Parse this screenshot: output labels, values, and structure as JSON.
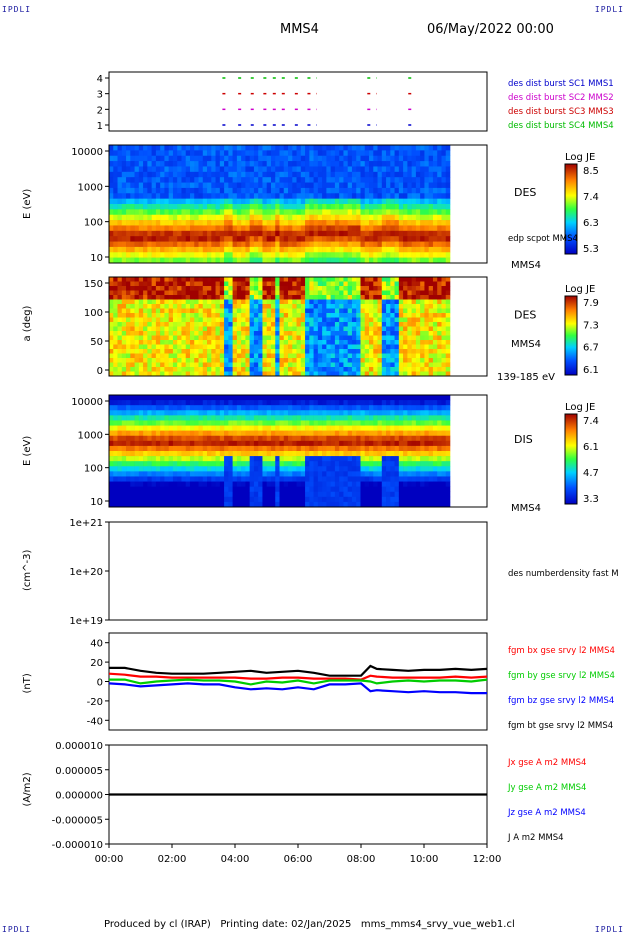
{
  "corners": {
    "tl": "IPDLI",
    "tr": "IPDLI",
    "bl": "IPDLI",
    "br": "IPDLI"
  },
  "header": {
    "spacecraft": "MMS4",
    "datetime": "06/May/2022 00:00"
  },
  "footer": {
    "text": "Produced by cl (IRAP)   Printing date: 02/Jan/2025   mms_mms4_srvy_vue_web1.cl"
  },
  "colors": {
    "ex": "#ff0000",
    "ey": "#00cc00",
    "ez": "#0000ff",
    "et": "#000000",
    "burst1": "#0000cc",
    "burst2": "#cc00cc",
    "burst3": "#cc0000",
    "burst4": "#00bb00"
  },
  "chart_data": [
    {
      "type": "scatter",
      "panel": "burst",
      "yticks": [
        "4",
        "3",
        "2",
        "1"
      ],
      "legend": [
        {
          "label": "des dist burst SC1 MMS1",
          "color": "#0000cc"
        },
        {
          "label": "des dist burst SC2 MMS2",
          "color": "#cc00cc"
        },
        {
          "label": "des dist burst SC3 MMS3",
          "color": "#cc0000"
        },
        {
          "label": "des dist burst SC4 MMS4",
          "color": "#00bb00"
        }
      ],
      "segments_hours": [
        [
          3.6,
          3.7
        ],
        [
          4.1,
          4.2
        ],
        [
          4.5,
          4.6
        ],
        [
          4.9,
          5.0
        ],
        [
          5.2,
          5.7
        ],
        [
          5.9,
          6.0
        ],
        [
          6.3,
          6.6
        ],
        [
          8.2,
          8.5
        ],
        [
          9.5,
          9.6
        ]
      ]
    },
    {
      "type": "heatmap",
      "panel": "des-energy",
      "ylabel": "E (eV)",
      "yticks": [
        "10000",
        "1000",
        "100",
        "10"
      ],
      "label": "DES",
      "overlay_label": "edp scpot MMS4",
      "spacecraft": "MMS4",
      "colorbar": {
        "title": "Log JE",
        "ticks": [
          "8.5",
          "7.4",
          "6.3",
          "5.3"
        ]
      }
    },
    {
      "type": "heatmap",
      "panel": "des-pitch",
      "ylabel": "a (deg)",
      "yticks": [
        "150",
        "100",
        "50",
        "0"
      ],
      "label": "DES",
      "spacecraft": "MMS4",
      "energy_range": "139-185 eV",
      "colorbar": {
        "title": "Log JE",
        "ticks": [
          "7.9",
          "7.3",
          "6.7",
          "6.1"
        ]
      }
    },
    {
      "type": "heatmap",
      "panel": "dis-energy",
      "ylabel": "E (eV)",
      "yticks": [
        "10000",
        "1000",
        "100",
        "10"
      ],
      "label": "DIS",
      "spacecraft": "MMS4",
      "colorbar": {
        "title": "Log JE",
        "ticks": [
          "7.4",
          "6.1",
          "4.7",
          "3.3"
        ]
      }
    },
    {
      "type": "line",
      "panel": "density",
      "ylabel": "(cm^-3)",
      "yticks": [
        "1e+21",
        "1e+20",
        "1e+19"
      ],
      "legend": [
        {
          "label": "des numberdensity fast M",
          "color": "#000000"
        }
      ]
    },
    {
      "type": "line",
      "panel": "bfield",
      "ylabel": "(nT)",
      "ylim": [
        -50,
        50
      ],
      "yticks": [
        "40",
        "20",
        "0",
        "-20",
        "-40"
      ],
      "legend": [
        {
          "label": "fgm bx gse srvy l2 MMS4",
          "color": "#ff0000"
        },
        {
          "label": "fgm by gse srvy l2 MMS4",
          "color": "#00cc00"
        },
        {
          "label": "fgm bz gse srvy l2 MMS4",
          "color": "#0000ff"
        },
        {
          "label": "fgm bt gse srvy l2 MMS4",
          "color": "#000000"
        }
      ],
      "series": [
        {
          "name": "fgm bt gse srvy l2 MMS4",
          "x": [
            0,
            0.5,
            1,
            1.5,
            2,
            2.5,
            3,
            3.5,
            4,
            4.5,
            5,
            5.5,
            6,
            6.5,
            7,
            7.5,
            8,
            8.3,
            8.5,
            9,
            9.5,
            10,
            10.5,
            11,
            11.5,
            12
          ],
          "values": [
            14,
            14,
            11,
            9,
            8,
            8,
            8,
            9,
            10,
            11,
            9,
            10,
            11,
            9,
            6,
            6,
            6,
            16,
            13,
            12,
            11,
            12,
            12,
            13,
            12,
            13
          ]
        },
        {
          "name": "fgm bx gse srvy l2 MMS4",
          "x": [
            0,
            0.5,
            1,
            1.5,
            2,
            2.5,
            3,
            3.5,
            4,
            4.5,
            5,
            5.5,
            6,
            6.5,
            7,
            7.5,
            8,
            8.3,
            8.5,
            9,
            9.5,
            10,
            10.5,
            11,
            11.5,
            12
          ],
          "values": [
            8,
            7,
            5,
            5,
            4,
            4,
            4,
            4,
            4,
            3,
            3,
            4,
            4,
            3,
            3,
            3,
            2,
            6,
            5,
            4,
            4,
            4,
            4,
            5,
            4,
            5
          ]
        },
        {
          "name": "fgm by gse srvy l2 MMS4",
          "x": [
            0,
            0.5,
            1,
            1.5,
            2,
            2.5,
            3,
            3.5,
            4,
            4.5,
            5,
            5.5,
            6,
            6.5,
            7,
            7.5,
            8,
            8.3,
            8.5,
            9,
            9.5,
            10,
            10.5,
            11,
            11.5,
            12
          ],
          "values": [
            2,
            2,
            -2,
            0,
            1,
            2,
            1,
            1,
            0,
            -3,
            0,
            -1,
            1,
            -2,
            1,
            1,
            1,
            0,
            -2,
            0,
            1,
            0,
            1,
            1,
            0,
            2
          ]
        },
        {
          "name": "fgm bz gse srvy l2 MMS4",
          "x": [
            0,
            0.5,
            1,
            1.5,
            2,
            2.5,
            3,
            3.5,
            4,
            4.5,
            5,
            5.5,
            6,
            6.5,
            7,
            7.5,
            8,
            8.3,
            8.5,
            9,
            9.5,
            10,
            10.5,
            11,
            11.5,
            12
          ],
          "values": [
            -2,
            -3,
            -5,
            -4,
            -3,
            -2,
            -3,
            -3,
            -6,
            -8,
            -7,
            -8,
            -6,
            -8,
            -3,
            -3,
            -2,
            -10,
            -9,
            -10,
            -11,
            -10,
            -11,
            -11,
            -12,
            -12
          ]
        }
      ]
    },
    {
      "type": "line",
      "panel": "current",
      "ylabel": "(A/m2)",
      "ylim": [
        -1e-05,
        1e-05
      ],
      "yticks": [
        "0.000010",
        "0.000005",
        "0.000000",
        "-0.000005",
        "-0.000010"
      ],
      "xticks": [
        "00:00",
        "02:00",
        "04:00",
        "06:00",
        "08:00",
        "10:00",
        "12:00"
      ],
      "legend": [
        {
          "label": "Jx gse A m2 MMS4",
          "color": "#ff0000"
        },
        {
          "label": "Jy gse A m2 MMS4",
          "color": "#00cc00"
        },
        {
          "label": "Jz gse A m2 MMS4",
          "color": "#0000ff"
        },
        {
          "label": "J A m2 MMS4",
          "color": "#000000"
        }
      ],
      "series": [
        {
          "name": "J A m2 MMS4",
          "x": [
            0,
            12
          ],
          "values": [
            0,
            0
          ]
        }
      ]
    }
  ]
}
